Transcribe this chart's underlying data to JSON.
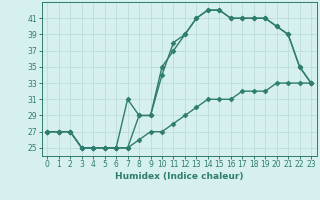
{
  "line1": {
    "x": [
      0,
      1,
      2,
      3,
      4,
      5,
      6,
      7,
      8,
      9,
      10,
      11,
      12,
      13,
      14,
      15,
      16,
      17,
      18,
      19,
      20,
      21,
      22,
      23
    ],
    "y": [
      27,
      27,
      27,
      25,
      25,
      25,
      25,
      25,
      29,
      29,
      34,
      38,
      39,
      41,
      42,
      42,
      41,
      41,
      41,
      41,
      40,
      39,
      35,
      33
    ]
  },
  "line2": {
    "x": [
      0,
      1,
      2,
      3,
      4,
      5,
      6,
      7,
      8,
      9,
      10,
      11,
      12,
      13,
      14,
      15,
      16,
      17,
      18,
      19,
      20,
      21,
      22,
      23
    ],
    "y": [
      27,
      27,
      27,
      25,
      25,
      25,
      25,
      31,
      29,
      29,
      35,
      37,
      39,
      41,
      42,
      42,
      41,
      41,
      41,
      41,
      40,
      39,
      35,
      33
    ]
  },
  "line3": {
    "x": [
      0,
      1,
      2,
      3,
      4,
      5,
      6,
      7,
      8,
      9,
      10,
      11,
      12,
      13,
      14,
      15,
      16,
      17,
      18,
      19,
      20,
      21,
      22,
      23
    ],
    "y": [
      27,
      27,
      27,
      25,
      25,
      25,
      25,
      25,
      26,
      27,
      27,
      28,
      29,
      30,
      31,
      31,
      31,
      32,
      32,
      32,
      33,
      33,
      33,
      33
    ]
  },
  "line_color": "#2e7d6e",
  "bg_color": "#d6f0f0",
  "grid_color": "#b8d8d8",
  "xlabel": "Humidex (Indice chaleur)",
  "ylim": [
    24,
    43
  ],
  "xlim": [
    -0.5,
    23.5
  ],
  "yticks": [
    25,
    27,
    29,
    31,
    33,
    35,
    37,
    39,
    41
  ],
  "xticks": [
    0,
    1,
    2,
    3,
    4,
    5,
    6,
    7,
    8,
    9,
    10,
    11,
    12,
    13,
    14,
    15,
    16,
    17,
    18,
    19,
    20,
    21,
    22,
    23
  ],
  "tick_labels": [
    "0",
    "1",
    "2",
    "3",
    "4",
    "5",
    "6",
    "7",
    "8",
    "9",
    "10",
    "11",
    "12",
    "13",
    "14",
    "15",
    "16",
    "17",
    "18",
    "19",
    "20",
    "21",
    "22",
    "23"
  ],
  "marker": "D",
  "markersize": 2.5,
  "linewidth": 1.0,
  "tick_fontsize": 5.5,
  "xlabel_fontsize": 6.5
}
